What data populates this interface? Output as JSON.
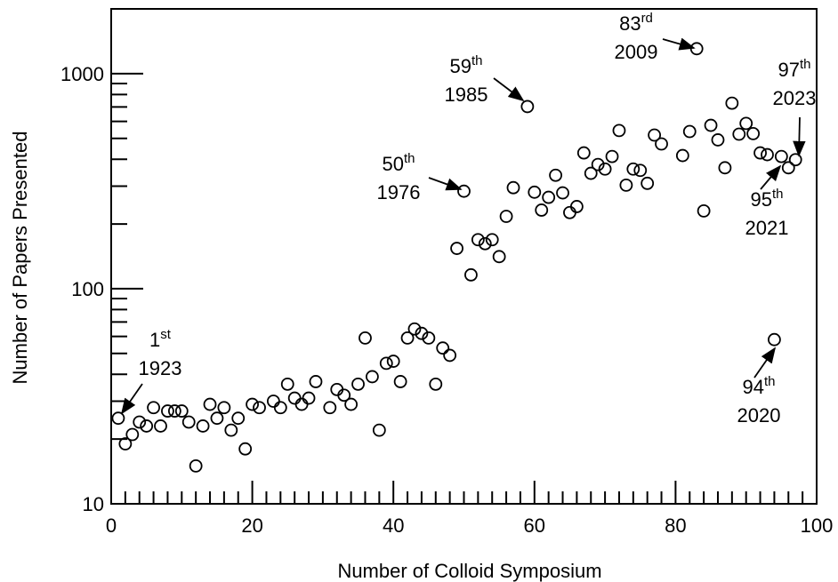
{
  "chart_data": {
    "type": "scatter",
    "xlabel": "Number of Colloid Symposium",
    "ylabel": "Number of Papers Presented",
    "log_y": true,
    "xlim": [
      0,
      100
    ],
    "xticks": [
      0,
      20,
      40,
      60,
      80,
      100
    ],
    "ylim": [
      10,
      2000
    ],
    "yticks": [
      10,
      100,
      1000
    ],
    "color": "#000000",
    "x": [
      1,
      2,
      3,
      4,
      5,
      6,
      7,
      8,
      9,
      10,
      11,
      12,
      13,
      14,
      15,
      16,
      17,
      18,
      19,
      20,
      21,
      23,
      24,
      25,
      26,
      27,
      28,
      29,
      31,
      32,
      33,
      34,
      35,
      36,
      37,
      38,
      39,
      40,
      41,
      42,
      43,
      44,
      45,
      46,
      47,
      48,
      49,
      50,
      51,
      52,
      53,
      54,
      55,
      56,
      57,
      59,
      60,
      61,
      62,
      63,
      64,
      65,
      66,
      67,
      68,
      69,
      70,
      71,
      72,
      73,
      74,
      75,
      76,
      77,
      78,
      81,
      82,
      83,
      84,
      85,
      86,
      87,
      88,
      89,
      90,
      91,
      92,
      93,
      94,
      95,
      96,
      97
    ],
    "values": [
      25,
      19,
      21,
      24,
      23,
      28,
      23,
      27,
      27,
      27,
      24,
      15,
      23,
      29,
      25,
      28,
      22,
      25,
      18,
      29,
      28,
      30,
      28,
      36,
      31,
      29,
      31,
      37,
      28,
      34,
      32,
      29,
      36,
      59,
      39,
      22,
      45,
      46,
      37,
      59,
      65,
      62,
      59,
      36,
      53,
      49,
      154,
      284,
      116,
      169,
      162,
      169,
      141,
      217,
      295,
      703,
      281,
      232,
      266,
      337,
      279,
      226,
      241,
      428,
      344,
      378,
      360,
      412,
      544,
      303,
      360,
      355,
      309,
      518,
      471,
      416,
      538,
      1306,
      230,
      575,
      492,
      365,
      729,
      523,
      587,
      526,
      428,
      420,
      58,
      412,
      365,
      398
    ],
    "annotations": [
      {
        "ordinal": "1",
        "suffix": "st",
        "year": "1923"
      },
      {
        "ordinal": "50",
        "suffix": "th",
        "year": "1976"
      },
      {
        "ordinal": "59",
        "suffix": "th",
        "year": "1985"
      },
      {
        "ordinal": "83",
        "suffix": "rd",
        "year": "2009"
      },
      {
        "ordinal": "97",
        "suffix": "th",
        "year": "2023"
      },
      {
        "ordinal": "95",
        "suffix": "th",
        "year": "2021"
      },
      {
        "ordinal": "94",
        "suffix": "th",
        "year": "2020"
      }
    ]
  }
}
